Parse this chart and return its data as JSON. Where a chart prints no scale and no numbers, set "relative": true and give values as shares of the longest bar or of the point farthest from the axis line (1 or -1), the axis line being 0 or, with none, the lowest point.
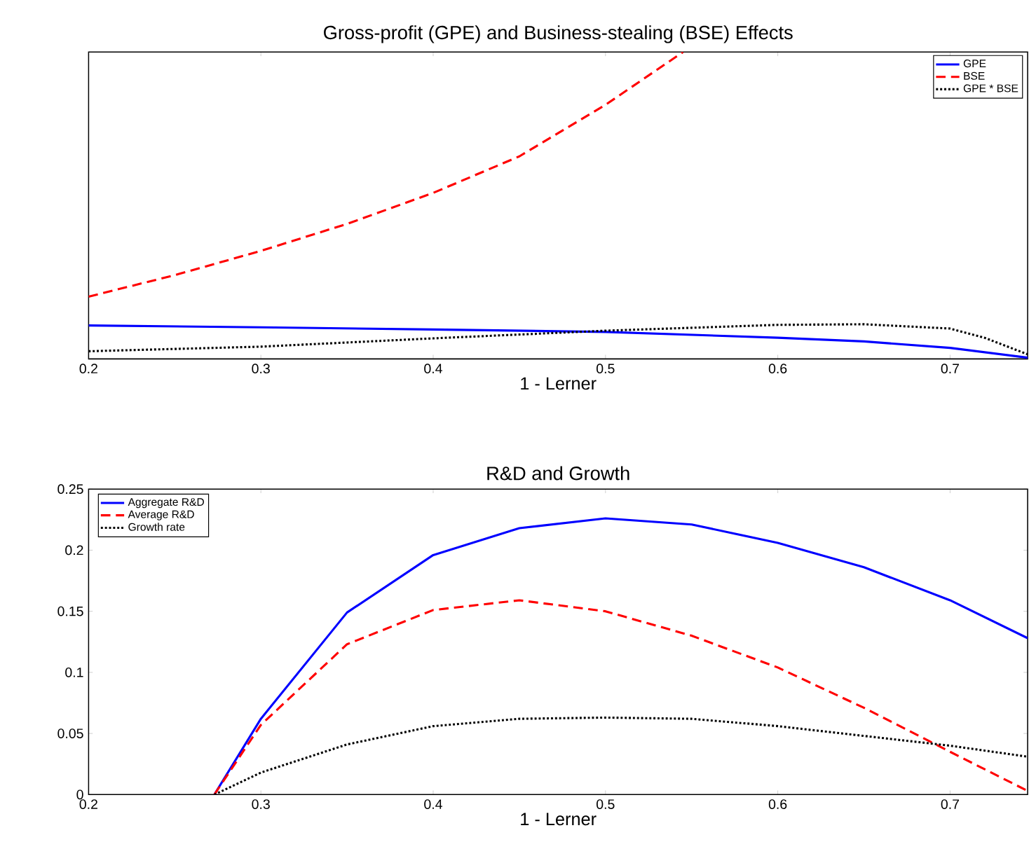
{
  "chart_data": [
    {
      "type": "line",
      "title": "Gross-profit (GPE) and Business-stealing (BSE) Effects",
      "xlabel": "1 - Lerner",
      "relative": true,
      "tick_labels": "x",
      "xlim": [
        0.2,
        0.745
      ],
      "xticks": [
        0.2,
        0.3,
        0.4,
        0.5,
        0.6,
        0.7
      ],
      "legend": "top right",
      "grid": false,
      "series": [
        {
          "name": "GPE",
          "color": "#0000ff",
          "line_style": "solid",
          "x": [
            0.2,
            0.3,
            0.4,
            0.5,
            0.6,
            0.65,
            0.7,
            0.745
          ],
          "values": [
            0.109,
            0.103,
            0.096,
            0.088,
            0.069,
            0.057,
            0.036,
            0.004
          ]
        },
        {
          "name": "BSE",
          "color": "#ff0000",
          "line_style": "dashed",
          "x": [
            0.2,
            0.25,
            0.3,
            0.35,
            0.4,
            0.45,
            0.5,
            0.545
          ],
          "values": [
            0.203,
            0.273,
            0.352,
            0.44,
            0.541,
            0.66,
            0.828,
            1.0
          ]
        },
        {
          "name": "GPE * BSE",
          "color": "#000000",
          "line_style": "dotted",
          "x": [
            0.2,
            0.3,
            0.4,
            0.5,
            0.6,
            0.65,
            0.7,
            0.72,
            0.745
          ],
          "values": [
            0.025,
            0.04,
            0.067,
            0.092,
            0.111,
            0.113,
            0.099,
            0.069,
            0.015
          ]
        }
      ]
    },
    {
      "type": "line",
      "title": "R&D and Growth",
      "xlabel": "1 - Lerner",
      "xlim": [
        0.2,
        0.745
      ],
      "xticks": [
        0.2,
        0.3,
        0.4,
        0.5,
        0.6,
        0.7
      ],
      "ylim": [
        0,
        0.25
      ],
      "yticks": [
        0,
        0.05,
        0.1,
        0.15,
        0.2,
        0.25
      ],
      "legend": "top left",
      "grid": false,
      "series": [
        {
          "name": "Aggregate R&D",
          "color": "#0000ff",
          "line_style": "solid",
          "x": [
            0.273,
            0.3,
            0.35,
            0.4,
            0.45,
            0.5,
            0.55,
            0.6,
            0.65,
            0.7,
            0.745
          ],
          "values": [
            0,
            0.062,
            0.149,
            0.196,
            0.218,
            0.226,
            0.221,
            0.206,
            0.186,
            0.159,
            0.128
          ]
        },
        {
          "name": "Average R&D",
          "color": "#ff0000",
          "line_style": "dashed",
          "x": [
            0.273,
            0.3,
            0.35,
            0.4,
            0.45,
            0.5,
            0.55,
            0.6,
            0.65,
            0.7,
            0.745
          ],
          "values": [
            0,
            0.057,
            0.123,
            0.151,
            0.159,
            0.15,
            0.13,
            0.104,
            0.071,
            0.035,
            0.003
          ]
        },
        {
          "name": "Growth rate",
          "color": "#000000",
          "line_style": "dotted",
          "x": [
            0.273,
            0.3,
            0.35,
            0.4,
            0.45,
            0.5,
            0.55,
            0.6,
            0.65,
            0.7,
            0.745
          ],
          "values": [
            0,
            0.018,
            0.041,
            0.056,
            0.062,
            0.063,
            0.062,
            0.056,
            0.048,
            0.04,
            0.031
          ]
        }
      ]
    }
  ]
}
